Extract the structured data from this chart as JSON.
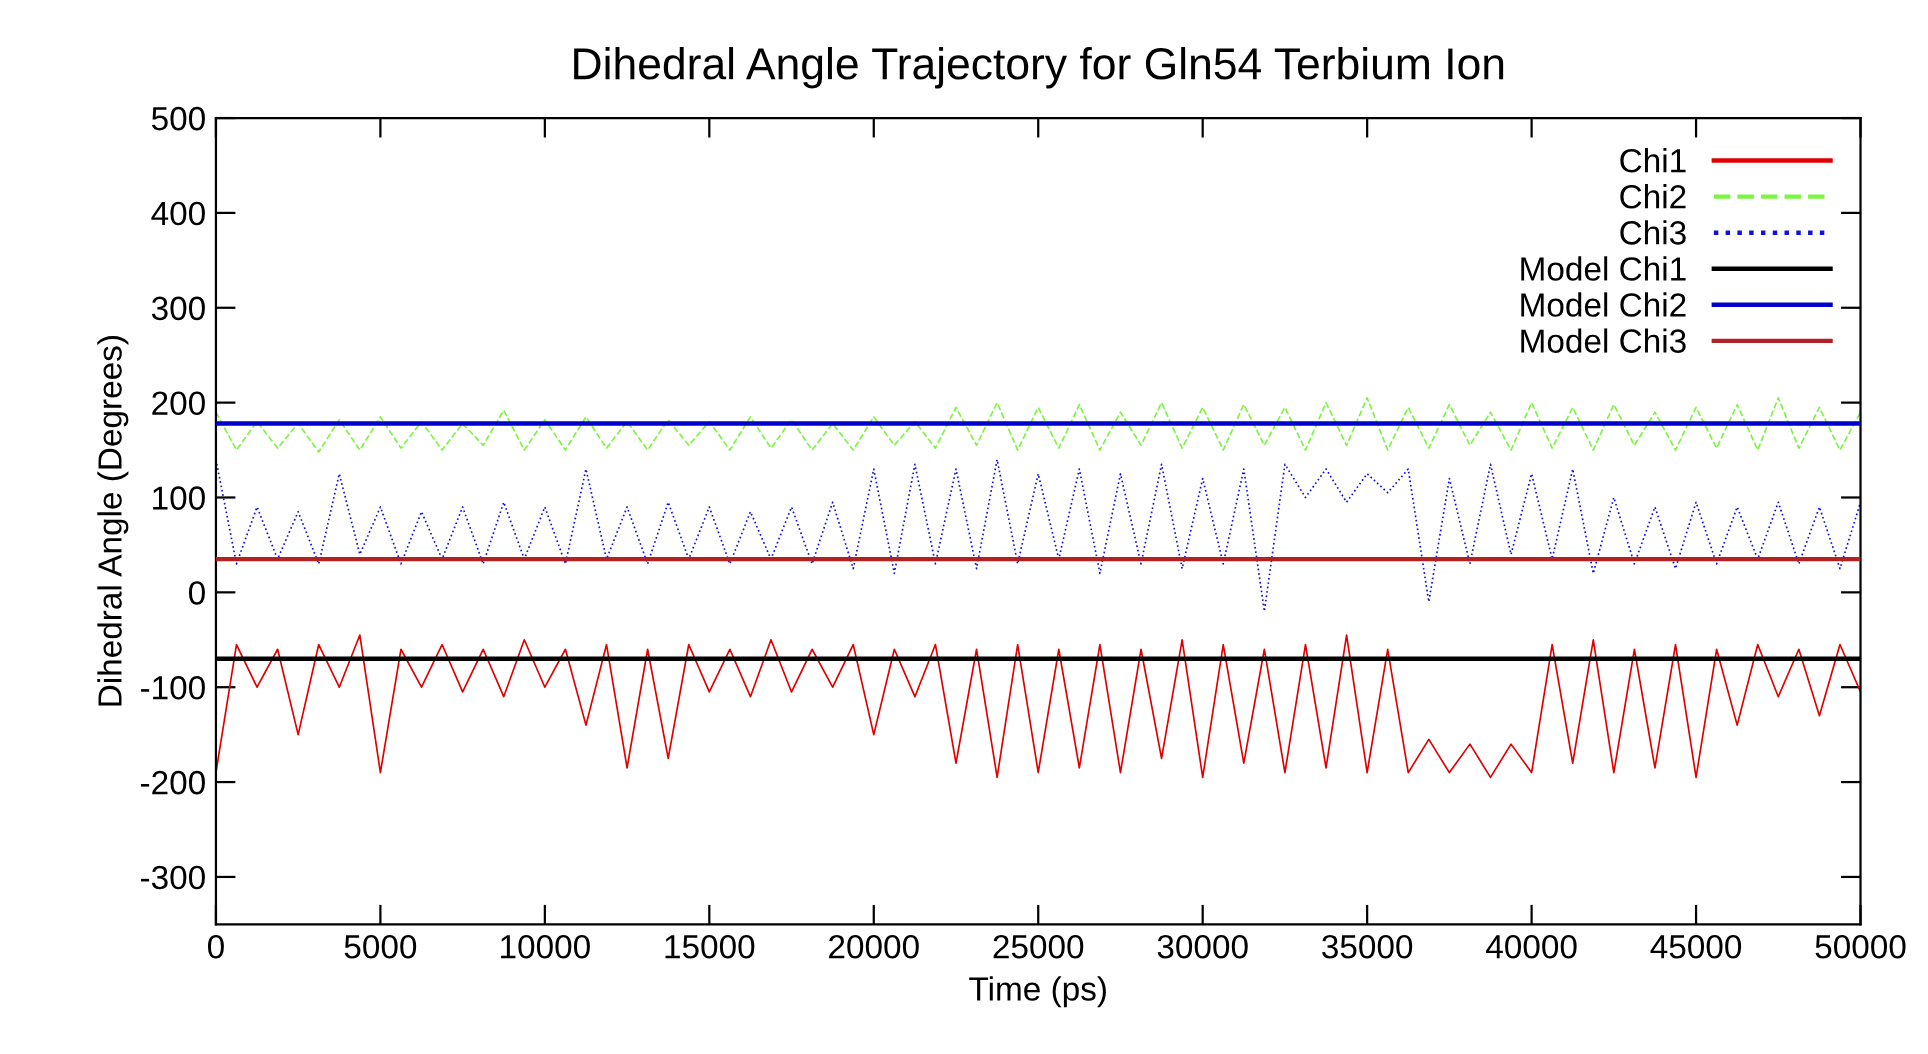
{
  "chart_data": {
    "type": "line",
    "title": "Dihedral Angle Trajectory for Gln54 Terbium Ion",
    "xlabel": "Time (ps)",
    "ylabel": "Dihedral Angle (Degrees)",
    "x": [
      0,
      625,
      1250,
      1875,
      2500,
      3125,
      3750,
      4375,
      5000,
      5625,
      6250,
      6875,
      7500,
      8125,
      8750,
      9375,
      10000,
      10625,
      11250,
      11875,
      12500,
      13125,
      13750,
      14375,
      15000,
      15625,
      16250,
      16875,
      17500,
      18125,
      18750,
      19375,
      20000,
      20625,
      21250,
      21875,
      22500,
      23125,
      23750,
      24375,
      25000,
      25625,
      26250,
      26875,
      27500,
      28125,
      28750,
      29375,
      30000,
      30625,
      31250,
      31875,
      32500,
      33125,
      33750,
      34375,
      35000,
      35625,
      36250,
      36875,
      37500,
      38125,
      38750,
      39375,
      40000,
      40625,
      41250,
      41875,
      42500,
      43125,
      43750,
      44375,
      45000,
      45625,
      46250,
      46875,
      47500,
      48125,
      48750,
      49375,
      50000
    ],
    "series": [
      {
        "name": "Chi1",
        "color": "#e00000",
        "line_style": "solid",
        "values": [
          -190,
          -55,
          -100,
          -60,
          -150,
          -55,
          -100,
          -45,
          -190,
          -60,
          -100,
          -55,
          -105,
          -60,
          -110,
          -50,
          -100,
          -60,
          -140,
          -55,
          -185,
          -60,
          -175,
          -55,
          -105,
          -60,
          -110,
          -50,
          -105,
          -60,
          -100,
          -55,
          -150,
          -60,
          -110,
          -55,
          -180,
          -60,
          -195,
          -55,
          -190,
          -60,
          -185,
          -55,
          -190,
          -60,
          -175,
          -50,
          -195,
          -55,
          -180,
          -60,
          -190,
          -55,
          -185,
          -45,
          -190,
          -60,
          -190,
          -155,
          -190,
          -160,
          -195,
          -160,
          -190,
          -55,
          -180,
          -50,
          -190,
          -60,
          -185,
          -55,
          -195,
          -60,
          -140,
          -55,
          -110,
          -60,
          -130,
          -55,
          -105
        ]
      },
      {
        "name": "Chi2",
        "color": "#7cf542",
        "line_style": "dashed",
        "values": [
          190,
          150,
          180,
          152,
          178,
          148,
          182,
          150,
          185,
          152,
          180,
          150,
          178,
          155,
          192,
          150,
          182,
          150,
          185,
          152,
          180,
          150,
          182,
          155,
          180,
          150,
          185,
          152,
          182,
          150,
          178,
          150,
          185,
          155,
          180,
          152,
          195,
          155,
          200,
          150,
          195,
          152,
          198,
          150,
          190,
          155,
          200,
          152,
          195,
          150,
          198,
          155,
          195,
          150,
          200,
          155,
          205,
          150,
          195,
          152,
          198,
          155,
          190,
          150,
          200,
          152,
          195,
          150,
          198,
          155,
          190,
          150,
          195,
          152,
          198,
          150,
          205,
          152,
          195,
          150,
          190
        ]
      },
      {
        "name": "Chi3",
        "color": "#1010e0",
        "line_style": "dotted",
        "values": [
          140,
          30,
          90,
          35,
          85,
          30,
          125,
          40,
          90,
          30,
          85,
          35,
          90,
          30,
          95,
          35,
          90,
          30,
          130,
          35,
          90,
          30,
          95,
          35,
          90,
          30,
          85,
          35,
          90,
          30,
          95,
          25,
          130,
          20,
          135,
          30,
          130,
          25,
          140,
          30,
          125,
          35,
          130,
          20,
          125,
          30,
          135,
          25,
          120,
          30,
          130,
          -20,
          135,
          100,
          130,
          95,
          125,
          105,
          130,
          -10,
          120,
          30,
          135,
          40,
          125,
          35,
          130,
          20,
          100,
          30,
          90,
          25,
          95,
          30,
          90,
          35,
          95,
          30,
          90,
          25,
          95
        ]
      }
    ],
    "ref_lines": [
      {
        "axis": "y",
        "value": -70,
        "label": "Model Chi1",
        "color": "#000000",
        "line_style": "solid"
      },
      {
        "axis": "y",
        "value": 178,
        "label": "Model Chi2",
        "color": "#0000cc",
        "line_style": "solid"
      },
      {
        "axis": "y",
        "value": 35,
        "label": "Model Chi3",
        "color": "#b22222",
        "line_style": "solid"
      }
    ],
    "xlim": [
      0,
      50000
    ],
    "xticks": [
      0,
      5000,
      10000,
      15000,
      20000,
      25000,
      30000,
      35000,
      40000,
      45000,
      50000
    ],
    "ylim": [
      -350,
      500
    ],
    "yticks": [
      -300,
      -200,
      -100,
      0,
      100,
      200,
      300,
      400,
      500
    ],
    "grid": false,
    "legend": "top right",
    "marker": "none"
  }
}
